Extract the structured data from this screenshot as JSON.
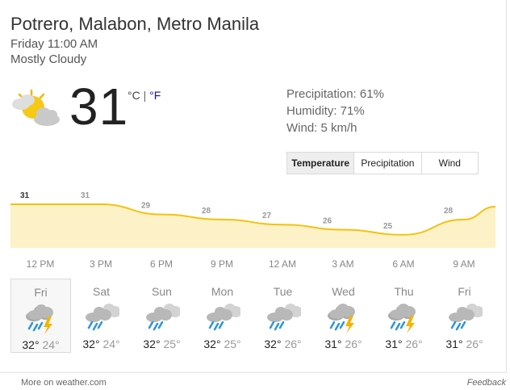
{
  "location": "Potrero, Malabon, Metro Manila",
  "datetime": "Friday 11:00 AM",
  "condition": "Mostly Cloudy",
  "current": {
    "icon": "sun-cloud-icon",
    "temperature": "31",
    "unit_c": "°C",
    "unit_sep": "|",
    "unit_f": "°F"
  },
  "stats": {
    "precipitation": "Precipitation: 61%",
    "humidity": "Humidity: 71%",
    "wind": "Wind: 5 km/h"
  },
  "tabs": [
    {
      "label": "Temperature",
      "active": true
    },
    {
      "label": "Precipitation",
      "active": false
    },
    {
      "label": "Wind",
      "active": false
    }
  ],
  "chart_data": {
    "type": "area",
    "title": "",
    "xlabel": "",
    "ylabel": "",
    "x": [
      "12 PM",
      "3 PM",
      "6 PM",
      "9 PM",
      "12 AM",
      "3 AM",
      "6 AM",
      "9 AM"
    ],
    "values": [
      31,
      31,
      29,
      28,
      27,
      26,
      25,
      28
    ],
    "labels": [
      "31",
      "31",
      "29",
      "28",
      "27",
      "26",
      "25",
      "28"
    ],
    "colors": {
      "line": "#f4c20d",
      "fill": "#fdf2c7"
    }
  },
  "forecast": [
    {
      "day": "Fri",
      "icon": "thunderstorm-icon",
      "high": "32°",
      "low": "24°",
      "selected": true
    },
    {
      "day": "Sat",
      "icon": "rain-cloud-icon",
      "high": "32°",
      "low": "24°",
      "selected": false
    },
    {
      "day": "Sun",
      "icon": "rain-cloud-icon",
      "high": "32°",
      "low": "25°",
      "selected": false
    },
    {
      "day": "Mon",
      "icon": "rain-cloud-icon",
      "high": "32°",
      "low": "25°",
      "selected": false
    },
    {
      "day": "Tue",
      "icon": "rain-cloud-icon",
      "high": "32°",
      "low": "26°",
      "selected": false
    },
    {
      "day": "Wed",
      "icon": "thunderstorm-icon",
      "high": "31°",
      "low": "26°",
      "selected": false
    },
    {
      "day": "Thu",
      "icon": "thunderstorm-icon",
      "high": "31°",
      "low": "26°",
      "selected": false
    },
    {
      "day": "Fri",
      "icon": "rain-cloud-icon",
      "high": "31°",
      "low": "26°",
      "selected": false
    }
  ],
  "footer": {
    "more": "More on weather.com",
    "feedback": "Feedback"
  }
}
